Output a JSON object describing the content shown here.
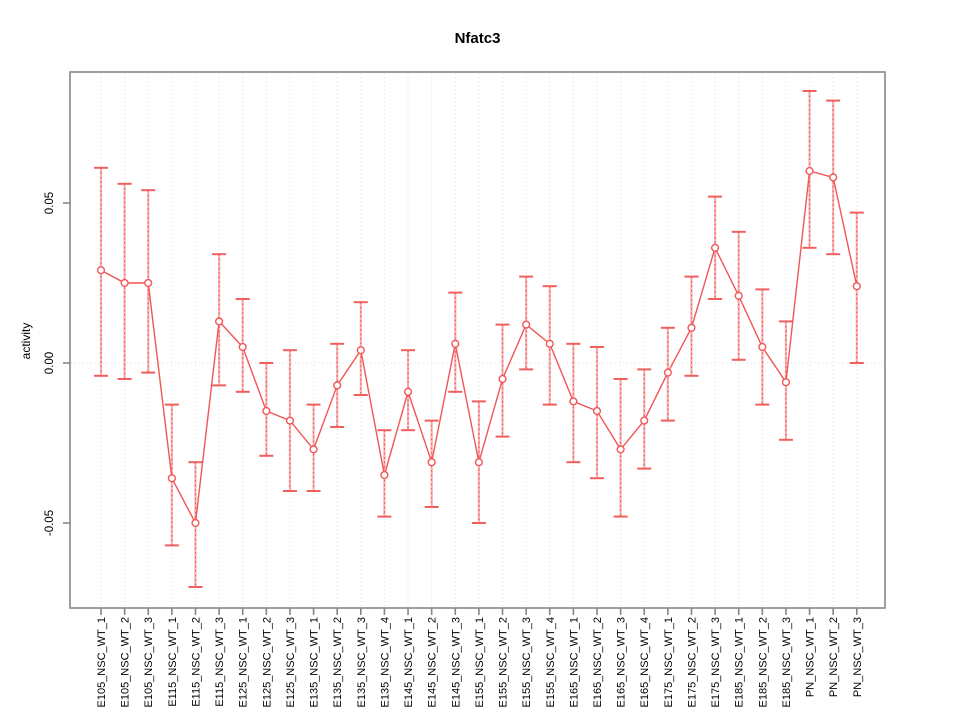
{
  "chart_data": {
    "type": "line",
    "title": "Nfatc3",
    "xlabel": "",
    "ylabel": "activity",
    "legend": "none",
    "grid": "vertical dotted gridline at every category plus dotted zero line",
    "categories": [
      "E105_NSC_WT_1",
      "E105_NSC_WT_2",
      "E105_NSC_WT_3",
      "E115_NSC_WT_1",
      "E115_NSC_WT_2",
      "E115_NSC_WT_3",
      "E125_NSC_WT_1",
      "E125_NSC_WT_2",
      "E125_NSC_WT_3",
      "E135_NSC_WT_1",
      "E135_NSC_WT_2",
      "E135_NSC_WT_3",
      "E135_NSC_WT_4",
      "E145_NSC_WT_1",
      "E145_NSC_WT_2",
      "E145_NSC_WT_3",
      "E155_NSC_WT_1",
      "E155_NSC_WT_2",
      "E155_NSC_WT_3",
      "E155_NSC_WT_4",
      "E165_NSC_WT_1",
      "E165_NSC_WT_2",
      "E165_NSC_WT_3",
      "E165_NSC_WT_4",
      "E175_NSC_WT_1",
      "E175_NSC_WT_2",
      "E175_NSC_WT_3",
      "E185_NSC_WT_1",
      "E185_NSC_WT_2",
      "E185_NSC_WT_3",
      "PN_NSC_WT_1",
      "PN_NSC_WT_2",
      "PN_NSC_WT_3"
    ],
    "series": [
      {
        "name": "activity",
        "marker": "open-circle",
        "values": [
          0.029,
          0.025,
          0.025,
          -0.036,
          -0.05,
          0.013,
          0.005,
          -0.015,
          -0.018,
          -0.027,
          -0.007,
          0.004,
          -0.035,
          -0.009,
          -0.031,
          0.006,
          -0.031,
          -0.005,
          0.012,
          0.006,
          -0.012,
          -0.015,
          -0.027,
          -0.018,
          -0.003,
          0.011,
          0.036,
          0.021,
          0.005,
          -0.006,
          0.06,
          0.058,
          0.024
        ],
        "error_low": [
          -0.004,
          -0.005,
          -0.003,
          -0.057,
          -0.07,
          -0.007,
          -0.009,
          -0.029,
          -0.04,
          -0.04,
          -0.02,
          -0.01,
          -0.048,
          -0.021,
          -0.045,
          -0.009,
          -0.05,
          -0.023,
          -0.002,
          -0.013,
          -0.031,
          -0.036,
          -0.048,
          -0.033,
          -0.018,
          -0.004,
          0.02,
          0.001,
          -0.013,
          -0.024,
          0.036,
          0.034,
          0.0
        ],
        "error_high": [
          0.061,
          0.056,
          0.054,
          -0.013,
          -0.031,
          0.034,
          0.02,
          0.0,
          0.004,
          -0.013,
          0.006,
          0.019,
          -0.021,
          0.004,
          -0.018,
          0.022,
          -0.012,
          0.012,
          0.027,
          0.024,
          0.006,
          0.005,
          -0.005,
          -0.002,
          0.011,
          0.027,
          0.052,
          0.041,
          0.023,
          0.013,
          0.085,
          0.082,
          0.047
        ]
      }
    ],
    "yticks": [
      -0.05,
      0.0,
      0.05
    ],
    "ytick_labels": [
      "-0.05",
      "0.00",
      "0.05"
    ],
    "ylim": [
      -0.077,
      0.091
    ],
    "colors": {
      "point_line": "#F25555",
      "error_cap": "#F15E5E",
      "error_stem": "#F8B0B0",
      "error_stem_dots": "#E84848",
      "grid": "#DCDCDC",
      "axis_box": "#878787",
      "text": "#000000",
      "background": "#FFFFFF"
    }
  }
}
